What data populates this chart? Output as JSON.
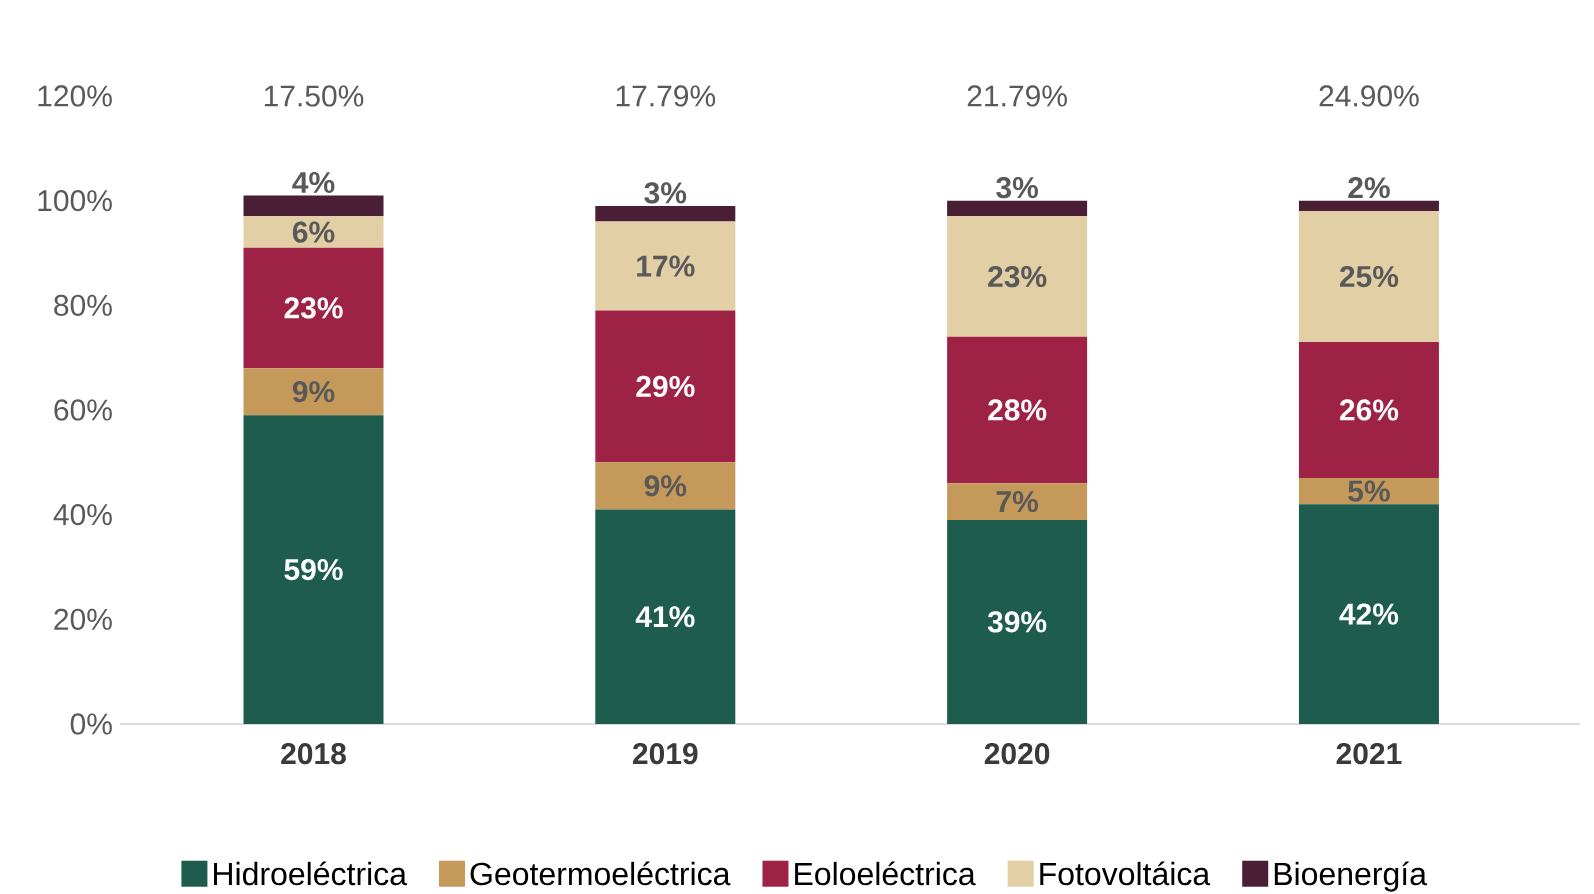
{
  "chart_data": {
    "type": "bar",
    "stacked": true,
    "categories": [
      "2018",
      "2019",
      "2020",
      "2021"
    ],
    "series": [
      {
        "name": "Hidroeléctrica",
        "color": "#1e5c4d",
        "values": [
          59,
          41,
          39,
          42
        ],
        "value_labels": [
          "59%",
          "41%",
          "39%",
          "42%"
        ]
      },
      {
        "name": "Geotermoeléctrica",
        "color": "#c4995a",
        "values": [
          9,
          9,
          7,
          5
        ],
        "value_labels": [
          "9%",
          "9%",
          "7%",
          "5%"
        ]
      },
      {
        "name": "Eoloeléctrica",
        "color": "#9e2246",
        "values": [
          23,
          29,
          28,
          26
        ],
        "value_labels": [
          "23%",
          "29%",
          "28%",
          "26%"
        ]
      },
      {
        "name": "Fotovoltáica",
        "color": "#e2cfa5",
        "values": [
          6,
          17,
          23,
          25
        ],
        "value_labels": [
          "6%",
          "17%",
          "23%",
          "25%"
        ]
      },
      {
        "name": "Bioenergía",
        "color": "#4a1e35",
        "values": [
          4,
          3,
          3,
          2
        ],
        "value_labels": [
          "4%",
          "3%",
          "3%",
          "2%"
        ]
      }
    ],
    "ylim": [
      0,
      120
    ],
    "yticks": [
      {
        "value": 0,
        "label": "0%"
      },
      {
        "value": 20,
        "label": "20%"
      },
      {
        "value": 40,
        "label": "40%"
      },
      {
        "value": 60,
        "label": "60%"
      },
      {
        "value": 80,
        "label": "80%"
      },
      {
        "value": 100,
        "label": "100%"
      },
      {
        "value": 120,
        "label": "120%"
      }
    ],
    "annotations": [
      "17.50%",
      "17.79%",
      "21.79%",
      "24.90%"
    ],
    "legend": "bottom",
    "grid": false
  }
}
